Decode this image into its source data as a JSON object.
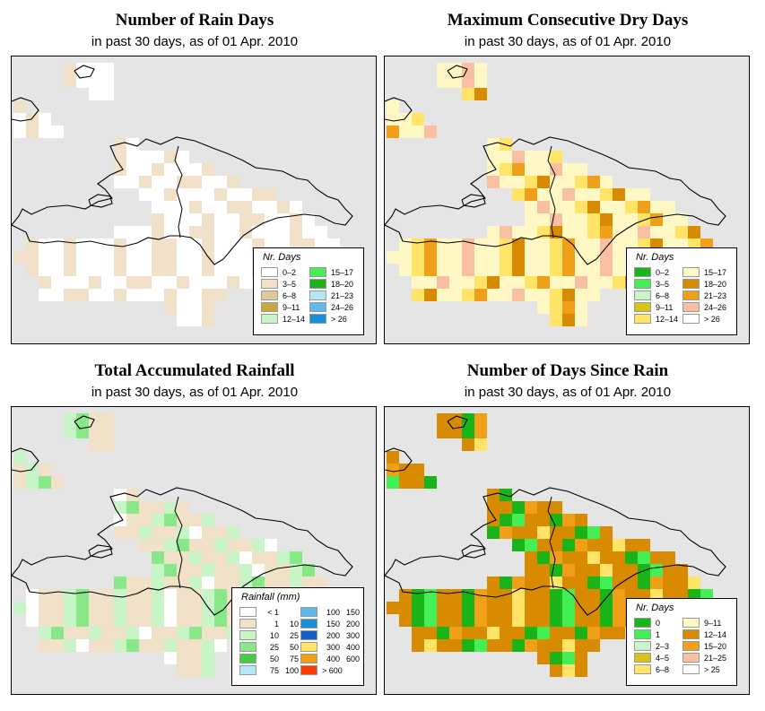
{
  "panels": [
    {
      "title": "Number of Rain Days",
      "subtitle": "in past 30 days, as of  01 Apr. 2010",
      "legend": {
        "title": "Nr. Days",
        "items": [
          {
            "label": "0–2",
            "color": "#ffffff"
          },
          {
            "label": "3–5",
            "color": "#f2e1c9"
          },
          {
            "label": "6–8",
            "color": "#e0c89a"
          },
          {
            "label": "9–11",
            "color": "#cfa640"
          },
          {
            "label": "12–14",
            "color": "#c8f5c8"
          },
          {
            "label": "15–17",
            "color": "#44ee55"
          },
          {
            "label": "18–20",
            "color": "#18b418"
          },
          {
            "label": "21–23",
            "color": "#b4e6f5"
          },
          {
            "label": "24–26",
            "color": "#60b8ee"
          },
          {
            "label": "> 26",
            "color": "#1890d8"
          }
        ]
      }
    },
    {
      "title": "Maximum Consecutive Dry Days",
      "subtitle": "in past 30 days, as of  01 Apr. 2010",
      "legend": {
        "title": "Nr. Days",
        "items": [
          {
            "label": "0–2",
            "color": "#18b418"
          },
          {
            "label": "3–5",
            "color": "#44ee55"
          },
          {
            "label": "6–8",
            "color": "#c8f5c8"
          },
          {
            "label": "9–11",
            "color": "#d8c418"
          },
          {
            "label": "12–14",
            "color": "#ffe468"
          },
          {
            "label": "15–17",
            "color": "#fff8c4"
          },
          {
            "label": "18–20",
            "color": "#d88a00"
          },
          {
            "label": "21–23",
            "color": "#f0a018"
          },
          {
            "label": "24–26",
            "color": "#f8c0a0"
          },
          {
            "label": "> 26",
            "color": "#ffffff"
          }
        ]
      }
    },
    {
      "title": "Total Accumulated Rainfall",
      "subtitle": "in past 30 days, as of  01 Apr. 2010",
      "legend": {
        "title": "Rainfall (mm)",
        "items": [
          {
            "lo": "< 1",
            "hi": "",
            "color": "#ffffff"
          },
          {
            "lo": "1",
            "hi": "10",
            "color": "#f2e1c9"
          },
          {
            "lo": "10",
            "hi": "25",
            "color": "#c8f5c8"
          },
          {
            "lo": "25",
            "hi": "50",
            "color": "#88e888"
          },
          {
            "lo": "50",
            "hi": "75",
            "color": "#44cc44"
          },
          {
            "lo": "75",
            "hi": "100",
            "color": "#b4e6f5"
          },
          {
            "lo": "100",
            "hi": "150",
            "color": "#60b8ee"
          },
          {
            "lo": "150",
            "hi": "200",
            "color": "#1890d8"
          },
          {
            "lo": "200",
            "hi": "300",
            "color": "#1460c8"
          },
          {
            "lo": "300",
            "hi": "400",
            "color": "#ffe468"
          },
          {
            "lo": "400",
            "hi": "600",
            "color": "#f0a018"
          },
          {
            "lo": "> 600",
            "hi": "",
            "color": "#ff3a00"
          }
        ]
      }
    },
    {
      "title": "Number of Days Since Rain",
      "subtitle": "in past 30 days, as of  01 Apr. 2010",
      "legend": {
        "title": "Nr. Days",
        "items": [
          {
            "label": "0",
            "color": "#18b418"
          },
          {
            "label": "1",
            "color": "#44ee55"
          },
          {
            "label": "2–3",
            "color": "#c8f5c8"
          },
          {
            "label": "4–5",
            "color": "#d8c418"
          },
          {
            "label": "6–8",
            "color": "#ffe468"
          },
          {
            "label": "9–11",
            "color": "#fff8c4"
          },
          {
            "label": "12–14",
            "color": "#d88a00"
          },
          {
            "label": "15–20",
            "color": "#f0a018"
          },
          {
            "label": "21–25",
            "color": "#f8c0a0"
          },
          {
            "label": "> 25",
            "color": "#ffffff"
          }
        ]
      }
    }
  ]
}
